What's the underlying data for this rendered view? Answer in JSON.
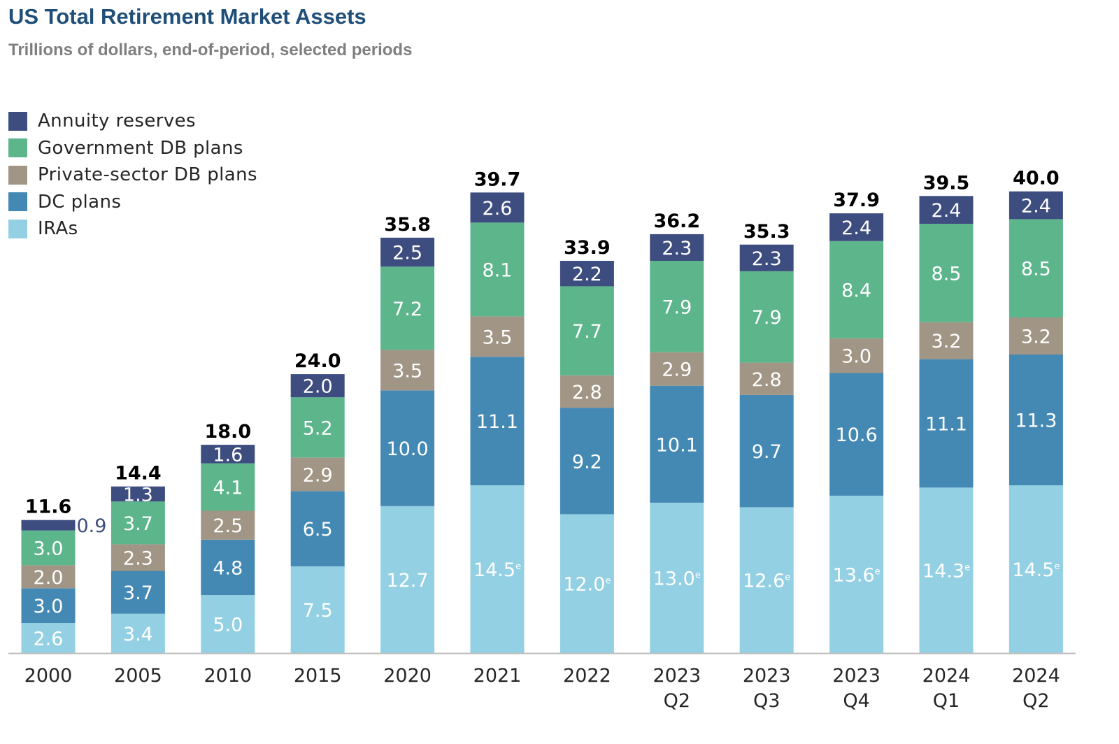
{
  "chart_data": {
    "type": "bar",
    "stacked": true,
    "title": "US Total Retirement Market Assets",
    "subtitle": "Trillions of dollars, end-of-period, selected periods",
    "xlabel": "",
    "ylabel": "",
    "ylim": [
      0,
      40
    ],
    "categories": [
      [
        "2000"
      ],
      [
        "2005"
      ],
      [
        "2010"
      ],
      [
        "2015"
      ],
      [
        "2020"
      ],
      [
        "2021"
      ],
      [
        "2022"
      ],
      [
        "2023",
        "Q2"
      ],
      [
        "2023",
        "Q3"
      ],
      [
        "2023",
        "Q4"
      ],
      [
        "2024",
        "Q1"
      ],
      [
        "2024",
        "Q2"
      ]
    ],
    "totals": [
      "11.6",
      "14.4",
      "18.0",
      "24.0",
      "35.8",
      "39.7",
      "33.9",
      "36.2",
      "35.3",
      "37.9",
      "39.5",
      "40.0"
    ],
    "series": [
      {
        "name": "IRAs",
        "color": "#93d0e3",
        "values": [
          2.6,
          3.4,
          5.0,
          7.5,
          12.7,
          14.5,
          12.0,
          13.0,
          12.6,
          13.6,
          14.3,
          14.5
        ],
        "labels": [
          "2.6",
          "3.4",
          "5.0",
          "7.5",
          "12.7",
          "14.5",
          "12.0",
          "13.0",
          "12.6",
          "13.6",
          "14.3",
          "14.5"
        ],
        "estimated": [
          false,
          false,
          false,
          false,
          false,
          true,
          true,
          true,
          true,
          true,
          true,
          true
        ]
      },
      {
        "name": "DC plans",
        "color": "#4488b4",
        "values": [
          3.0,
          3.7,
          4.8,
          6.5,
          10.0,
          11.1,
          9.2,
          10.1,
          9.7,
          10.6,
          11.1,
          11.3
        ],
        "labels": [
          "3.0",
          "3.7",
          "4.8",
          "6.5",
          "10.0",
          "11.1",
          "9.2",
          "10.1",
          "9.7",
          "10.6",
          "11.1",
          "11.3"
        ]
      },
      {
        "name": "Private-sector DB plans",
        "color": "#a19685",
        "values": [
          2.0,
          2.3,
          2.5,
          2.9,
          3.5,
          3.5,
          2.8,
          2.9,
          2.8,
          3.0,
          3.2,
          3.2
        ],
        "labels": [
          "2.0",
          "2.3",
          "2.5",
          "2.9",
          "3.5",
          "3.5",
          "2.8",
          "2.9",
          "2.8",
          "3.0",
          "3.2",
          "3.2"
        ]
      },
      {
        "name": "Government DB plans",
        "color": "#5db58c",
        "values": [
          3.0,
          3.7,
          4.1,
          5.2,
          7.2,
          8.1,
          7.7,
          7.9,
          7.9,
          8.4,
          8.5,
          8.5
        ],
        "labels": [
          "3.0",
          "3.7",
          "4.1",
          "5.2",
          "7.2",
          "8.1",
          "7.7",
          "7.9",
          "7.9",
          "8.4",
          "8.5",
          "8.5"
        ]
      },
      {
        "name": "Annuity reserves",
        "color": "#3e4d7f",
        "values": [
          0.9,
          1.3,
          1.6,
          2.0,
          2.5,
          2.6,
          2.2,
          2.3,
          2.3,
          2.4,
          2.4,
          2.4
        ],
        "labels": [
          "0.9",
          "1.3",
          "1.6",
          "2.0",
          "2.5",
          "2.6",
          "2.2",
          "2.3",
          "2.3",
          "2.4",
          "2.4",
          "2.4"
        ],
        "outside_label_index": 0
      }
    ],
    "legend": {
      "placement": "top-left",
      "order": [
        "Annuity reserves",
        "Government DB plans",
        "Private-sector DB plans",
        "DC plans",
        "IRAs"
      ]
    },
    "estimate_marker": "e",
    "grid": false
  },
  "colors": {
    "title": "#1f4e79",
    "subtitle": "#7f7f7f",
    "axis": "#bfbfbf",
    "total_label": "#000000",
    "outside_label": "#3e4d7f"
  }
}
